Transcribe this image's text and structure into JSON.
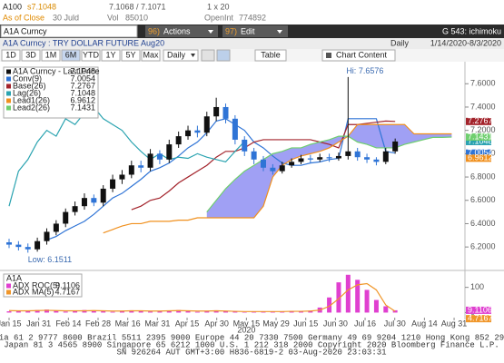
{
  "header": {
    "ticker": "A100",
    "last": "s7.1048",
    "bid_ask": "7.1068 / 7.1071",
    "size": "1 x 20",
    "as_of": "As of Close",
    "date": "30 Juld",
    "vol_label": "Vol",
    "vol": 85010,
    "oi_label": "OpenInt",
    "oi": 774892
  },
  "toolbar": {
    "security": "A1A Curncy",
    "actions_num": "96)",
    "actions": "Actions",
    "edit_num": "97)",
    "edit": "Edit",
    "function": "G 543: ichimoku"
  },
  "subheader": {
    "title": "A1A Curncy : TRY DOLLAR FUTURE Aug20",
    "period": "Daily",
    "range": "1/14/2020-8/3/2020"
  },
  "controls": {
    "ranges": [
      "1D",
      "3D",
      "1M",
      "6M",
      "YTD",
      "1Y",
      "5Y",
      "Max"
    ],
    "selected": "6M",
    "period": "Daily",
    "table": "Table",
    "content": "Chart Content"
  },
  "chart_data": [
    {
      "type": "candlestick",
      "ylim": [
        6.1,
        7.75
      ],
      "yticks": [
        {
          "value": 6.2,
          "label": "6.2000"
        },
        {
          "value": 6.4,
          "label": "6.4000"
        },
        {
          "value": 6.6,
          "label": "6.6000"
        },
        {
          "value": 6.8,
          "label": "6.8000"
        },
        {
          "value": 7.0,
          "label": "7.0000"
        },
        {
          "value": 7.2,
          "label": "7.2000"
        },
        {
          "value": 7.4,
          "label": "7.4000"
        },
        {
          "value": 7.6,
          "label": "7.6000"
        }
      ],
      "xtick_labels": [
        "Jan 15",
        "Jan 31",
        "Feb 14",
        "Feb 28",
        "Mar 16",
        "Mar 31",
        "Apr 15",
        "Apr 30",
        "May 15",
        "May 29",
        "Jun 15",
        "Jun 30",
        "Jul 16",
        "Jul 30",
        "Aug 14",
        "Aug 31"
      ],
      "x_year": "2020",
      "annotations": [
        {
          "text": "Hi: 7.6576"
        },
        {
          "text": "Low: 6.1511"
        }
      ],
      "cloud_color": "#8080f0",
      "candles": {
        "name": "A1A Curncy - Last Price",
        "last": 7.1048,
        "up_color": "#111111",
        "down_color": "#2f74d6",
        "open": [
          6.24,
          6.22,
          6.2,
          6.18,
          6.25,
          6.33,
          6.4,
          6.5,
          6.55,
          6.62,
          6.58,
          6.7,
          6.78,
          6.82,
          6.9,
          6.88,
          7.0,
          6.95,
          7.08,
          7.15,
          7.2,
          7.18,
          7.32,
          7.4,
          7.3,
          7.12,
          7.02,
          6.95,
          6.88,
          6.85,
          6.9,
          6.93,
          6.96,
          6.95,
          6.97,
          6.96,
          6.98,
          7.02,
          6.97,
          6.95,
          6.93,
          7.02,
          null,
          null,
          null,
          null,
          null,
          null
        ],
        "high": [
          6.27,
          6.25,
          6.23,
          6.28,
          6.36,
          6.43,
          6.53,
          6.59,
          6.66,
          6.65,
          6.73,
          6.82,
          6.86,
          6.94,
          6.94,
          7.04,
          7.03,
          7.12,
          7.19,
          7.24,
          7.24,
          7.36,
          7.48,
          7.43,
          7.33,
          7.15,
          7.05,
          6.98,
          6.91,
          6.93,
          6.96,
          6.99,
          6.99,
          7.0,
          7.0,
          7.01,
          7.6576,
          7.05,
          7.0,
          6.97,
          7.05,
          7.13,
          null,
          null,
          null,
          null,
          null,
          null
        ],
        "low": [
          6.19,
          6.17,
          6.1511,
          6.16,
          6.22,
          6.3,
          6.37,
          6.47,
          6.52,
          6.55,
          6.55,
          6.67,
          6.74,
          6.79,
          6.84,
          6.85,
          6.91,
          6.92,
          7.05,
          7.12,
          7.14,
          7.15,
          7.28,
          7.26,
          7.08,
          6.98,
          6.91,
          6.85,
          6.82,
          6.83,
          6.88,
          6.91,
          6.92,
          6.93,
          6.93,
          6.94,
          6.95,
          6.94,
          6.92,
          6.9,
          6.91,
          7.0,
          null,
          null,
          null,
          null,
          null,
          null
        ],
        "close": [
          6.22,
          6.2,
          6.18,
          6.25,
          6.33,
          6.4,
          6.5,
          6.55,
          6.62,
          6.58,
          6.7,
          6.78,
          6.82,
          6.9,
          6.88,
          7.0,
          6.95,
          7.08,
          7.15,
          7.2,
          7.18,
          7.32,
          7.4,
          7.3,
          7.12,
          7.02,
          6.95,
          6.88,
          6.85,
          6.9,
          6.93,
          6.96,
          6.95,
          6.97,
          6.96,
          6.98,
          7.02,
          6.97,
          6.95,
          6.93,
          7.02,
          7.1048,
          null,
          null,
          null,
          null,
          null,
          null
        ]
      },
      "series": [
        {
          "name": "Conv(9)",
          "color": "#2f74d6",
          "last": 7.0054,
          "values": [
            null,
            null,
            null,
            null,
            6.26,
            6.29,
            6.34,
            6.38,
            6.42,
            6.48,
            6.55,
            6.62,
            6.66,
            6.72,
            6.78,
            6.85,
            6.88,
            6.92,
            6.98,
            7.05,
            7.1,
            7.18,
            7.28,
            7.3,
            7.25,
            7.2,
            7.1,
            7.05,
            6.98,
            6.92,
            6.9,
            6.9,
            6.92,
            6.93,
            6.95,
            6.96,
            7.3,
            7.3,
            7.3,
            7.3,
            7.02,
            7.0054,
            null,
            null,
            null,
            null,
            null,
            null
          ]
        },
        {
          "name": "Base(26)",
          "color": "#a3232b",
          "last": 7.2767,
          "values": [
            null,
            null,
            null,
            null,
            null,
            null,
            null,
            null,
            null,
            null,
            null,
            null,
            null,
            6.52,
            6.55,
            6.6,
            6.62,
            6.68,
            6.75,
            6.8,
            6.85,
            6.9,
            6.97,
            7.02,
            7.02,
            7.05,
            7.1,
            7.12,
            7.12,
            7.12,
            7.12,
            7.12,
            7.12,
            7.1,
            7.08,
            7.05,
            7.25,
            7.25,
            7.26,
            7.27,
            7.28,
            7.2767,
            null,
            null,
            null,
            null,
            null,
            null
          ]
        },
        {
          "name": "Lag(26)",
          "color": "#2aa3b0",
          "last": 7.1048,
          "values": [
            6.55,
            6.85,
            6.95,
            7.1,
            7.2,
            7.15,
            7.3,
            7.25,
            7.35,
            7.4,
            7.3,
            7.25,
            7.2,
            7.1,
            7.02,
            6.95,
            7.0,
            6.95,
            6.97,
            6.96,
            7.0,
            6.97,
            6.95,
            6.93,
            7.02,
            7.1048,
            null,
            null,
            null,
            null,
            null,
            null,
            null,
            null,
            null,
            null,
            null,
            null,
            null,
            null,
            null,
            null,
            null,
            null,
            null,
            null,
            null,
            null
          ]
        },
        {
          "name": "Lead1(26)",
          "color": "#f0901e",
          "last": 6.9612,
          "values": [
            null,
            null,
            null,
            null,
            null,
            null,
            null,
            null,
            null,
            null,
            6.32,
            6.35,
            6.38,
            6.4,
            6.4,
            6.42,
            6.42,
            6.42,
            6.43,
            6.43,
            6.45,
            6.45,
            6.45,
            6.45,
            6.45,
            6.45,
            6.45,
            6.55,
            6.8,
            6.9,
            6.95,
            6.98,
            7.0,
            7.02,
            7.05,
            7.1,
            7.15,
            7.25,
            7.25,
            7.25,
            7.25,
            7.25,
            7.25,
            7.17,
            7.17,
            7.17,
            7.17,
            7.17
          ]
        },
        {
          "name": "Lead2(26)",
          "color": "#6fcf6f",
          "last": 7.1431,
          "values": [
            null,
            null,
            null,
            null,
            null,
            null,
            null,
            null,
            null,
            null,
            null,
            null,
            null,
            null,
            null,
            null,
            null,
            null,
            null,
            null,
            null,
            6.5,
            6.6,
            6.7,
            6.78,
            6.85,
            6.9,
            6.95,
            7.0,
            7.02,
            7.05,
            7.05,
            7.08,
            7.1,
            7.12,
            7.15,
            7.15,
            7.1,
            7.08,
            7.05,
            7.05,
            7.05,
            7.08,
            7.1,
            7.12,
            7.14,
            7.14,
            7.1431
          ]
        }
      ]
    },
    {
      "type": "bar",
      "title": "A1A",
      "ylim": [
        -20,
        160
      ],
      "yticks": [
        0,
        100
      ],
      "series": [
        {
          "name": "ADX ROC(5)",
          "type": "bar",
          "color": "#e040d0",
          "last": 9.1106,
          "values": [
            5,
            8,
            6,
            10,
            12,
            8,
            4,
            6,
            10,
            8,
            5,
            3,
            6,
            9,
            7,
            4,
            5,
            8,
            10,
            6,
            3,
            5,
            9,
            7,
            4,
            2,
            3,
            5,
            4,
            3,
            6,
            4,
            8,
            20,
            60,
            120,
            150,
            130,
            90,
            50,
            25,
            9.1106,
            null,
            null,
            null,
            null,
            null,
            null
          ]
        },
        {
          "name": "ADX MA(5)",
          "type": "line",
          "color": "#f0962a",
          "last": 4.7167,
          "values": [
            8,
            7,
            7,
            8,
            9,
            8,
            7,
            7,
            7,
            8,
            7,
            6,
            6,
            7,
            7,
            6,
            6,
            7,
            8,
            7,
            6,
            6,
            7,
            6,
            5,
            4,
            4,
            4,
            4,
            4,
            5,
            5,
            6,
            10,
            25,
            55,
            90,
            110,
            115,
            90,
            30,
            4.7167,
            null,
            null,
            null,
            null,
            null,
            null
          ]
        }
      ]
    }
  ],
  "footer": [
    "Australia 61 2 9777 8600 Brazil 5511 2395 9000 Europe 44 20 7330 7500 Germany 49 69 9204 1210 Hong Kong 852 2977 6000",
    "Japan 81 3 4565 8900       Singapore 65 6212 1000       U.S. 1 212 318 2000       Copyright 2020 Bloomberg Finance L.P.",
    "SN 926264 AUT  GMT+3:00 H836-6819-2 03-Aug-2020 23:03:31"
  ]
}
